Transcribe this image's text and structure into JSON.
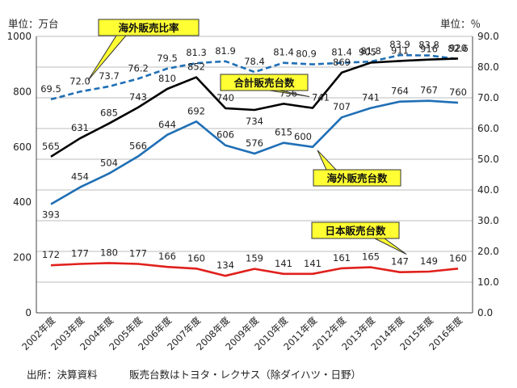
{
  "chart_data": {
    "type": "line",
    "title": "",
    "left_unit_label": "単位：万台",
    "right_unit_label": "単位：％",
    "categories": [
      "2002年度",
      "2003年度",
      "2004年度",
      "2005年度",
      "2006年度",
      "2007年度",
      "2008年度",
      "2009年度",
      "2010年度",
      "2011年度",
      "2012年度",
      "2013年度",
      "2014年度",
      "2015年度",
      "2016年度"
    ],
    "y_left": {
      "min": 0,
      "max": 1000,
      "ticks": [
        "0",
        "200",
        "400",
        "600",
        "800",
        "1000"
      ]
    },
    "y_right": {
      "min": 0,
      "max": 90,
      "ticks": [
        "0.0",
        "10.0",
        "20.0",
        "30.0",
        "40.0",
        "50.0",
        "60.0",
        "70.0",
        "80.0",
        "90.0"
      ]
    },
    "grid": true,
    "series": [
      {
        "name": "海外販売比率",
        "axis": "right",
        "style": "dashed",
        "color": "#1f6fb5",
        "values": [
          69.5,
          72.0,
          73.7,
          76.2,
          79.5,
          81.3,
          81.9,
          78.4,
          81.4,
          80.9,
          81.4,
          81.8,
          83.9,
          83.8,
          82.6
        ],
        "labels": [
          "69.5",
          "72.0",
          "73.7",
          "76.2",
          "79.5",
          "81.3",
          "81.9",
          "78.4",
          "81.4",
          "80.9",
          "81.4",
          "81.8",
          "83.9",
          "83.8",
          "82.6"
        ]
      },
      {
        "name": "合計販売台数",
        "axis": "left",
        "style": "solid",
        "color": "#000000",
        "values": [
          565,
          631,
          685,
          743,
          810,
          852,
          740,
          734,
          756,
          741,
          869,
          905,
          911,
          916,
          920
        ],
        "labels": [
          "565",
          "631",
          "685",
          "743",
          "810",
          "852",
          "740",
          "734",
          "756",
          "741",
          "869",
          "905",
          "911",
          "916",
          "920"
        ]
      },
      {
        "name": "海外販売台数",
        "axis": "left",
        "style": "solid",
        "color": "#1f6fb5",
        "values": [
          393,
          454,
          504,
          566,
          644,
          692,
          606,
          576,
          615,
          600,
          707,
          741,
          764,
          767,
          760
        ],
        "labels": [
          "393",
          "454",
          "504",
          "566",
          "644",
          "692",
          "606",
          "576",
          "615",
          "600",
          "707",
          "741",
          "764",
          "767",
          "760"
        ]
      },
      {
        "name": "日本販売台数",
        "axis": "left",
        "style": "solid",
        "color": "#e0201c",
        "values": [
          172,
          177,
          180,
          177,
          166,
          160,
          134,
          159,
          141,
          141,
          161,
          165,
          147,
          149,
          160
        ],
        "labels": [
          "172",
          "177",
          "180",
          "177",
          "166",
          "160",
          "134",
          "159",
          "141",
          "141",
          "161",
          "165",
          "147",
          "149",
          "160"
        ]
      }
    ],
    "callouts": [
      "海外販売比率",
      "合計販売台数",
      "海外販売台数",
      "日本販売台数"
    ],
    "footer_source": "出所：決算資料",
    "footer_note": "販売台数はトヨタ・レクサス（除ダイハツ・日野）"
  },
  "colors": {
    "callout_fill": "#ffff33",
    "grid": "#bdbdbd"
  }
}
